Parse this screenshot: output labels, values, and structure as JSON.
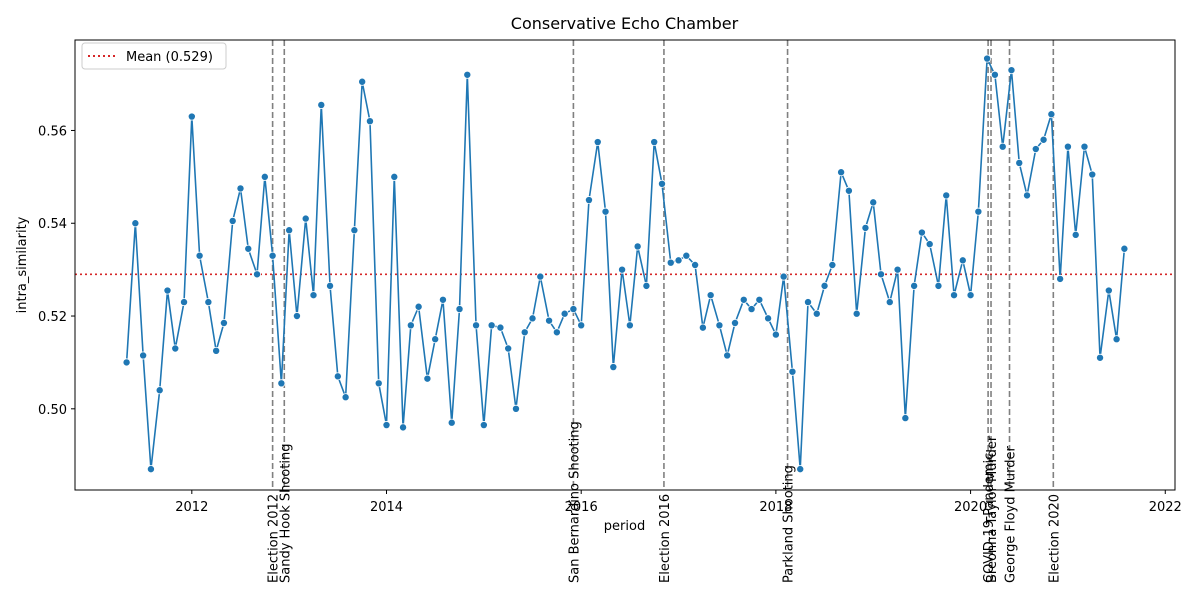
{
  "chart_data": {
    "type": "line",
    "title": "Conservative Echo Chamber",
    "xlabel": "period",
    "ylabel": "intra_similarity",
    "xlim": [
      2010.8,
      2022.1
    ],
    "ylim": [
      0.4825,
      0.5795
    ],
    "xticks": [
      {
        "value": 2012,
        "label": "2012"
      },
      {
        "value": 2014,
        "label": "2014"
      },
      {
        "value": 2016,
        "label": "2016"
      },
      {
        "value": 2018,
        "label": "2018"
      },
      {
        "value": 2020,
        "label": "2020"
      },
      {
        "value": 2022,
        "label": "2022"
      }
    ],
    "yticks": [
      {
        "value": 0.5,
        "label": "0.50"
      },
      {
        "value": 0.52,
        "label": "0.52"
      },
      {
        "value": 0.54,
        "label": "0.54"
      },
      {
        "value": 0.56,
        "label": "0.56"
      }
    ],
    "grid": false,
    "legend_position": "top-left",
    "mean_line": {
      "value": 0.529,
      "label": "Mean (0.529)",
      "color": "#d62728",
      "style": "dotted"
    },
    "series_color": "#1f77b4",
    "event_color": "#808080",
    "events": [
      {
        "x": 2012.83,
        "label": "Election 2012"
      },
      {
        "x": 2012.95,
        "label": "Sandy Hook Shooting"
      },
      {
        "x": 2015.92,
        "label": "San Bernardino Shooting"
      },
      {
        "x": 2016.85,
        "label": "Election 2016"
      },
      {
        "x": 2018.12,
        "label": "Parkland Shooting"
      },
      {
        "x": 2020.18,
        "label": "COVID-19 Pandemic"
      },
      {
        "x": 2020.21,
        "label": "Breonna Taylor Murder"
      },
      {
        "x": 2020.4,
        "label": "George Floyd Murder"
      },
      {
        "x": 2020.85,
        "label": "Election 2020"
      }
    ],
    "series": [
      {
        "x": [
          2011.33,
          2011.42,
          2011.5,
          2011.58,
          2011.67,
          2011.75,
          2011.83,
          2011.92,
          2012.0,
          2012.08,
          2012.17,
          2012.25,
          2012.33,
          2012.42,
          2012.5,
          2012.58,
          2012.67,
          2012.75,
          2012.83,
          2012.92,
          2013.0,
          2013.08,
          2013.17,
          2013.25,
          2013.33,
          2013.42,
          2013.5,
          2013.58,
          2013.67,
          2013.75,
          2013.83,
          2013.92,
          2014.0,
          2014.08,
          2014.17,
          2014.25,
          2014.33,
          2014.42,
          2014.5,
          2014.58,
          2014.67,
          2014.75,
          2014.83,
          2014.92,
          2015.0,
          2015.08,
          2015.17,
          2015.25,
          2015.33,
          2015.42,
          2015.5,
          2015.58,
          2015.67,
          2015.75,
          2015.83,
          2015.92,
          2016.0,
          2016.08,
          2016.17,
          2016.25,
          2016.33,
          2016.42,
          2016.5,
          2016.58,
          2016.67,
          2016.75,
          2016.83,
          2016.92,
          2017.0,
          2017.08,
          2017.17,
          2017.25,
          2017.33,
          2017.42,
          2017.5,
          2017.58,
          2017.67,
          2017.75,
          2017.83,
          2017.92,
          2018.0,
          2018.08,
          2018.17,
          2018.25,
          2018.33,
          2018.42,
          2018.5,
          2018.58,
          2018.67,
          2018.75,
          2018.83,
          2018.92,
          2019.0,
          2019.08,
          2019.17,
          2019.25,
          2019.33,
          2019.42,
          2019.5,
          2019.58,
          2019.67,
          2019.75,
          2019.83,
          2019.92,
          2020.0,
          2020.08,
          2020.17,
          2020.25,
          2020.33,
          2020.42,
          2020.5,
          2020.58,
          2020.67,
          2020.75,
          2020.83,
          2020.92,
          2021.0,
          2021.08,
          2021.17,
          2021.25,
          2021.33,
          2021.42,
          2021.5,
          2021.58
        ],
        "values": [
          0.51,
          0.54,
          0.5115,
          0.487,
          0.504,
          0.5255,
          0.513,
          0.523,
          0.563,
          0.533,
          0.523,
          0.5125,
          0.5185,
          0.5405,
          0.5475,
          0.5345,
          0.529,
          0.55,
          0.533,
          0.5055,
          0.5385,
          0.52,
          0.541,
          0.5245,
          0.5655,
          0.5265,
          0.507,
          0.5025,
          0.5385,
          0.5705,
          0.562,
          0.5055,
          0.4965,
          0.55,
          0.496,
          0.518,
          0.522,
          0.5065,
          0.515,
          0.5235,
          0.497,
          0.5215,
          0.572,
          0.518,
          0.4965,
          0.518,
          0.5175,
          0.513,
          0.5,
          0.5165,
          0.5195,
          0.5285,
          0.519,
          0.5165,
          0.5205,
          0.5215,
          0.518,
          0.545,
          0.5575,
          0.5425,
          0.509,
          0.53,
          0.518,
          0.535,
          0.5265,
          0.5575,
          0.5485,
          0.5315,
          0.532,
          0.533,
          0.531,
          0.5175,
          0.5245,
          0.518,
          0.5115,
          0.5185,
          0.5235,
          0.5215,
          0.5235,
          0.5195,
          0.516,
          0.5285,
          0.508,
          0.487,
          0.523,
          0.5205,
          0.5265,
          0.531,
          0.551,
          0.547,
          0.5205,
          0.539,
          0.5445,
          0.529,
          0.523,
          0.53,
          0.498,
          0.5265,
          0.538,
          0.5355,
          0.5265,
          0.546,
          0.5245,
          0.532,
          0.5245,
          0.5425,
          0.5755,
          0.572,
          0.5565,
          0.573,
          0.553,
          0.546,
          0.556,
          0.558,
          0.5635,
          0.528,
          0.5565,
          0.5375,
          0.5565,
          0.5505,
          0.511,
          0.5255,
          0.515,
          0.5345
        ]
      }
    ]
  }
}
